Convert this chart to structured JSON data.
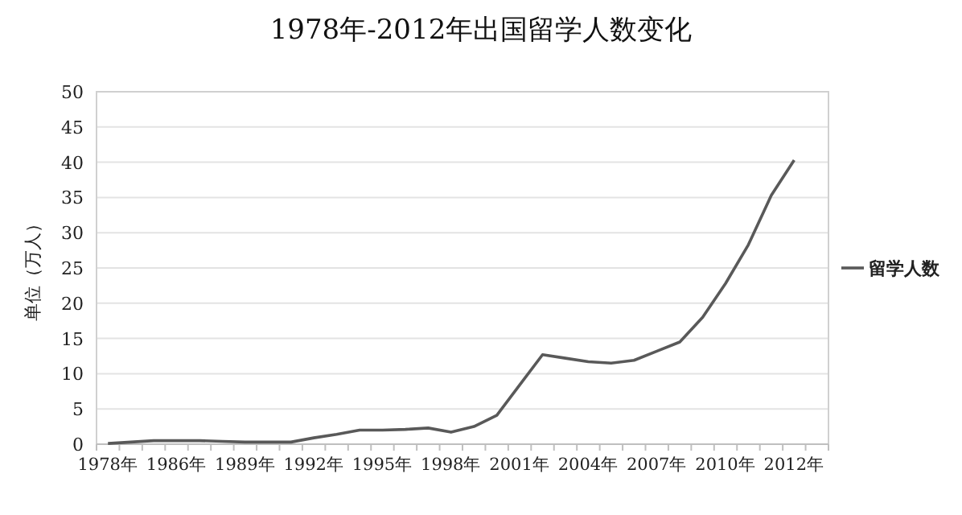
{
  "chart_data": {
    "type": "line",
    "title": "1978年-2012年出国留学人数变化",
    "ylabel": "单位（万人）",
    "categories": [
      "1978年",
      null,
      null,
      "1986年",
      null,
      null,
      "1989年",
      null,
      null,
      "1992年",
      null,
      null,
      "1995年",
      null,
      null,
      "1998年",
      null,
      null,
      "2001年",
      null,
      null,
      "2004年",
      null,
      null,
      "2007年",
      null,
      null,
      "2010年",
      null,
      null,
      "2012年",
      null
    ],
    "series": [
      {
        "name": "留学人数",
        "color": "#595959",
        "values": [
          0.1,
          0.3,
          0.5,
          0.5,
          0.5,
          0.4,
          0.3,
          0.3,
          0.3,
          0.9,
          1.4,
          2.0,
          2.0,
          2.1,
          2.3,
          1.7,
          2.5,
          4.1,
          8.4,
          12.7,
          12.2,
          11.7,
          11.5,
          11.9,
          13.2,
          14.5,
          18.0,
          22.8,
          28.3,
          35.3,
          40.3,
          null
        ]
      }
    ],
    "ylim": [
      0,
      50
    ],
    "yticks": [
      0,
      5,
      10,
      15,
      20,
      25,
      30,
      35,
      40,
      45,
      50
    ],
    "grid": "y",
    "legend": "right"
  }
}
